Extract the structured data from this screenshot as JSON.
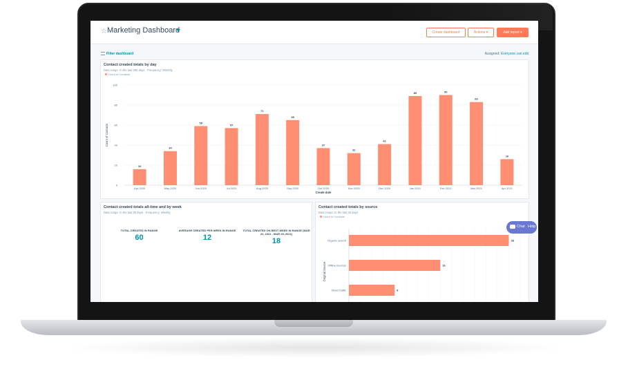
{
  "header": {
    "title": "Marketing Dashboard",
    "create_label": "Create dashboard",
    "actions_label": "Actions",
    "add_report_label": "Add report"
  },
  "filter": {
    "label": "Filter dashboard",
    "assigned_label": "Assigned:",
    "assigned_value": "Everyone can edit"
  },
  "card1": {
    "title": "Contact created totals by day",
    "subtitle": "Date range: In the last 365 days  ·  Frequency: Monthly",
    "legend": "Count of Contacts"
  },
  "card2": {
    "title": "Contact created totals all-time and by week",
    "subtitle": "Date range: In the last 30 days  ·  Frequency: Weekly",
    "kpis": [
      {
        "label": "TOTAL CREATED IN RANGE",
        "value": "60"
      },
      {
        "label": "AVERAGE CREATED PER WEEK IN RANGE",
        "value": "12"
      },
      {
        "label": "TOTAL CREATED ON BEST WEEK IN RANGE (MAR 22, 2021 - MAR 29, 2021)",
        "value": "18"
      }
    ]
  },
  "card3": {
    "title": "Contact created totals by source",
    "subtitle": "Date range: In the last 30 days",
    "legend": "Count of Contacts"
  },
  "chat": {
    "chat_label": "Chat",
    "help_label": "Help"
  },
  "colors": {
    "bar": "#ff8f73",
    "accent": "#ff7a59",
    "link": "#0091ae",
    "text": "#33475b"
  },
  "chart_data": [
    {
      "type": "bar",
      "title": "Contact created totals by day",
      "xlabel": "Create date",
      "ylabel": "Count of Contacts",
      "ylim": [
        0,
        100
      ],
      "yticks": [
        0,
        20,
        40,
        60,
        80,
        100
      ],
      "categories": [
        "Apr 2020",
        "May 2020",
        "Jun 2020",
        "Jul 2020",
        "Aug 2020",
        "Sep 2020",
        "Oct 2020",
        "Nov 2020",
        "Dec 2020",
        "Jan 2021",
        "Feb 2021",
        "Mar 2021",
        "Apr 2021"
      ],
      "series": [
        {
          "name": "Count of Contacts",
          "values": [
            16,
            34,
            59,
            57,
            71,
            65,
            37,
            32,
            41,
            89,
            90,
            83,
            26
          ]
        }
      ]
    },
    {
      "type": "bar",
      "orientation": "horizontal",
      "title": "Contact created totals by source",
      "ylabel": "Original Source",
      "categories": [
        "Organic search",
        "Offline sources",
        "Direct traffic"
      ],
      "series": [
        {
          "name": "Count of Contacts",
          "values": [
            28,
            16,
            8
          ]
        }
      ],
      "xlim": [
        0,
        30
      ]
    }
  ]
}
